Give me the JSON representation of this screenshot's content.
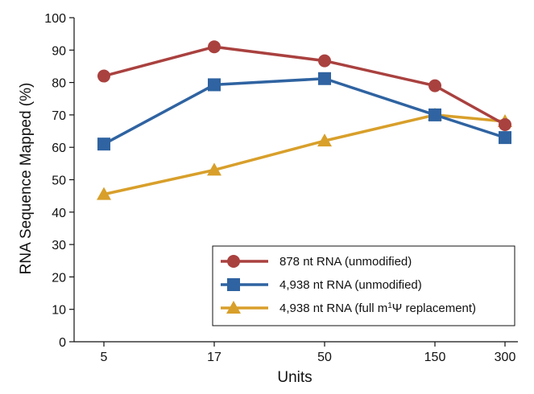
{
  "chart_data": {
    "type": "line",
    "xlabel": "Units",
    "ylabel": "RNA Sequence Mapped (%)",
    "categories": [
      "5",
      "17",
      "50",
      "150",
      "300"
    ],
    "ylim": [
      0,
      100
    ],
    "yticks": [
      "0",
      "10",
      "20",
      "30",
      "40",
      "50",
      "60",
      "70",
      "80",
      "90",
      "100"
    ],
    "grid": false,
    "legend_position": "bottom-right",
    "series": [
      {
        "name": "878 nt RNA (unmodified)",
        "marker": "circle",
        "color": "#a9413f",
        "values": [
          82,
          91,
          86.7,
          79,
          67
        ]
      },
      {
        "name": "4,938 nt RNA (unmodified)",
        "marker": "square",
        "color": "#2f63a1",
        "values": [
          61,
          79.3,
          81.2,
          70,
          63
        ]
      },
      {
        "name_parts": [
          "4,938 nt RNA (full m",
          "1",
          "Ψ replacement)"
        ],
        "marker": "triangle",
        "color": "#d89f2a",
        "values": [
          45.5,
          53,
          62,
          70,
          68
        ]
      }
    ]
  }
}
